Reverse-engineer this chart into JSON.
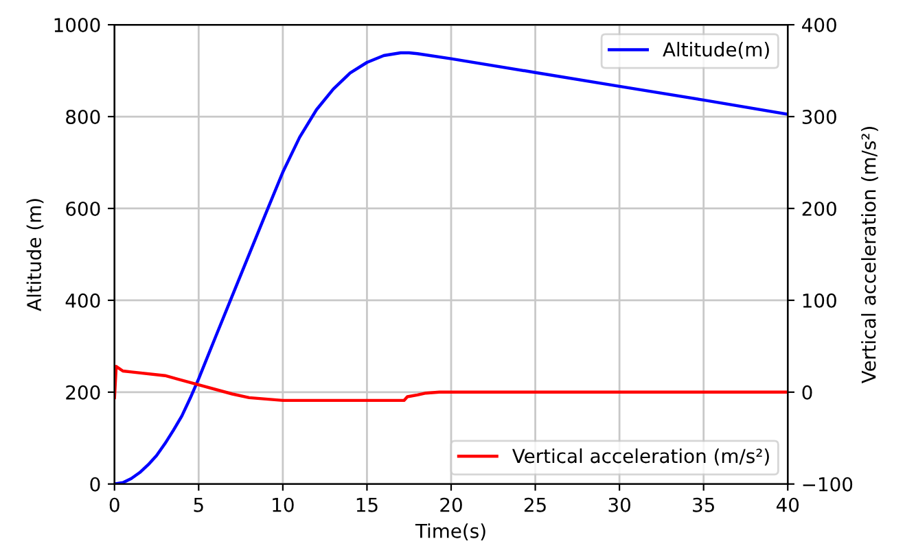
{
  "chart_data": {
    "type": "line",
    "xlabel": "Time(s)",
    "ylabel": "Altitude (m)",
    "y2label": "Vertical acceleration (m/s²)",
    "xlim": [
      0,
      40
    ],
    "xticks": [
      0,
      5,
      10,
      15,
      20,
      25,
      30,
      35,
      40
    ],
    "ylim": [
      0,
      1000
    ],
    "yticks": [
      0,
      200,
      400,
      600,
      800,
      1000
    ],
    "y2lim": [
      -100,
      400
    ],
    "y2ticks": [
      {
        "value": -100,
        "label": "−100"
      },
      0,
      100,
      200,
      300,
      400
    ],
    "grid": true,
    "legend": "top right",
    "marker": "none",
    "line_style": "solid",
    "series": [
      {
        "name": "Altitude(m)",
        "color": "#0000ff",
        "x": [
          0,
          0.5,
          1,
          1.5,
          2,
          2.5,
          3,
          3.5,
          4,
          4.5,
          5,
          6,
          7,
          8,
          9,
          10,
          11,
          12,
          13,
          14,
          15,
          16,
          17,
          17.5,
          18,
          20,
          25,
          30,
          35,
          40
        ],
        "values": [
          0,
          3,
          12,
          25,
          42,
          62,
          88,
          117,
          148,
          187,
          229,
          320,
          410,
          500,
          590,
          679,
          755,
          815,
          860,
          895,
          918,
          933,
          939,
          939,
          937,
          926,
          896,
          866,
          836,
          805
        ]
      },
      {
        "name": "Vertical acceleration (m/s²)",
        "color": "#ff0000",
        "axis": "y2",
        "x": [
          0,
          0.1,
          0.5,
          1,
          3,
          5,
          7,
          8,
          10,
          12,
          17.2,
          17.4,
          18,
          18.5,
          19.3,
          25,
          30,
          40
        ],
        "values": [
          -6,
          28,
          23,
          22,
          18,
          8,
          -2,
          -6,
          -9,
          -9,
          -9,
          -5,
          -3,
          -1,
          0,
          0,
          0,
          0
        ]
      }
    ]
  }
}
